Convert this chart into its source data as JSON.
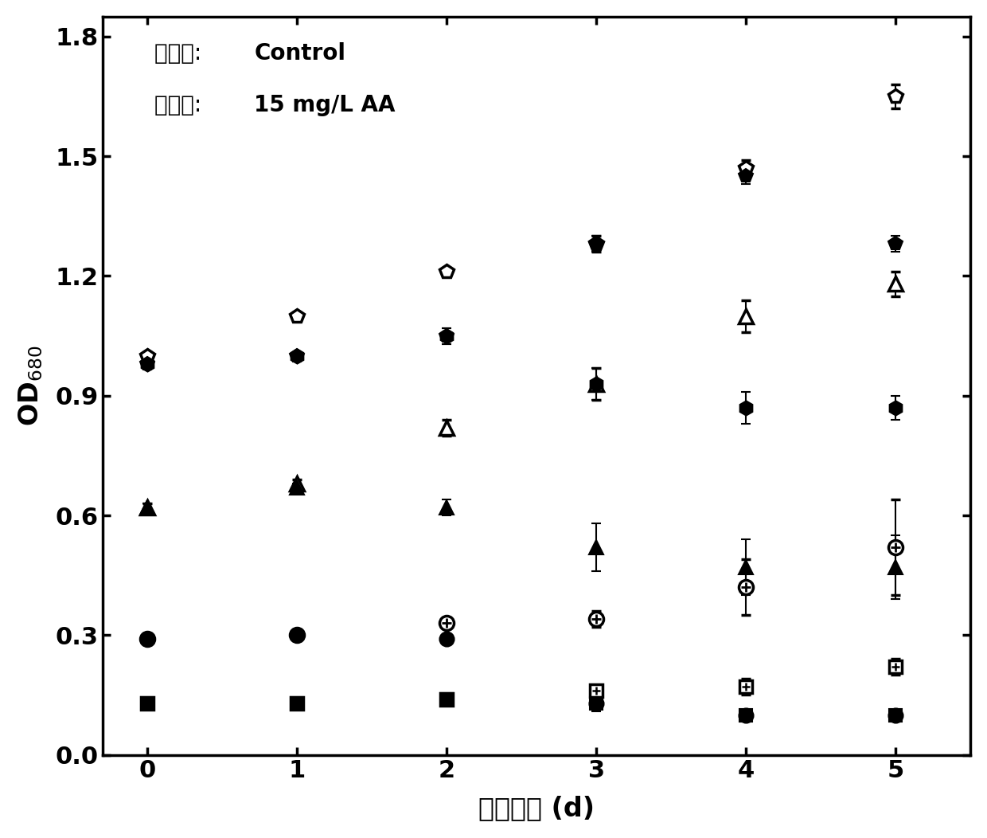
{
  "x": [
    0,
    1,
    2,
    3,
    4,
    5
  ],
  "series": [
    {
      "name": "pentagon_open",
      "y": [
        1.0,
        1.1,
        1.21,
        1.28,
        1.47,
        1.65
      ],
      "yerr": [
        0.01,
        0.01,
        0.01,
        0.02,
        0.02,
        0.03
      ],
      "marker": "p",
      "mfc": "white",
      "mec": "black",
      "mew": 2.5,
      "ms": 13
    },
    {
      "name": "pentagon_filled",
      "y": [
        0.98,
        1.0,
        1.05,
        1.28,
        1.45,
        1.28
      ],
      "yerr": [
        0.01,
        0.01,
        0.02,
        0.02,
        0.02,
        0.02
      ],
      "marker": "p",
      "mfc": "black",
      "mec": "black",
      "mew": 1.5,
      "ms": 13
    },
    {
      "name": "triangle_open",
      "y": [
        0.62,
        0.68,
        0.82,
        0.93,
        1.1,
        1.18
      ],
      "yerr": [
        0.01,
        0.01,
        0.02,
        0.04,
        0.04,
        0.03
      ],
      "marker": "^",
      "mfc": "white",
      "mec": "black",
      "mew": 2.5,
      "ms": 13
    },
    {
      "name": "hexagon_filled",
      "y": [
        0.98,
        1.0,
        1.05,
        0.93,
        0.87,
        0.87
      ],
      "yerr": [
        0.01,
        0.01,
        0.02,
        0.04,
        0.04,
        0.03
      ],
      "marker": "h",
      "mfc": "black",
      "mec": "black",
      "mew": 1.5,
      "ms": 13
    },
    {
      "name": "triangle_filled",
      "y": [
        0.62,
        0.67,
        0.62,
        0.52,
        0.47,
        0.47
      ],
      "yerr": [
        0.01,
        0.01,
        0.02,
        0.06,
        0.07,
        0.08
      ],
      "marker": "^",
      "mfc": "black",
      "mec": "black",
      "mew": 1.5,
      "ms": 13
    },
    {
      "name": "circle_cross_open",
      "y": [
        0.29,
        0.3,
        0.33,
        0.34,
        0.42,
        0.52
      ],
      "yerr": [
        0.01,
        0.01,
        0.01,
        0.02,
        0.07,
        0.12
      ],
      "marker": "o",
      "mfc": "white",
      "mec": "black",
      "mew": 2.5,
      "ms": 13,
      "cross": true
    },
    {
      "name": "circle_filled",
      "y": [
        0.29,
        0.3,
        0.29,
        0.13,
        0.1,
        0.1
      ],
      "yerr": [
        0.01,
        0.01,
        0.01,
        0.02,
        0.01,
        0.01
      ],
      "marker": "o",
      "mfc": "black",
      "mec": "black",
      "mew": 1.5,
      "ms": 13
    },
    {
      "name": "square_open",
      "y": [
        0.13,
        0.13,
        0.14,
        0.16,
        0.17,
        0.22
      ],
      "yerr": [
        0.005,
        0.005,
        0.005,
        0.01,
        0.02,
        0.02
      ],
      "marker": "s",
      "mfc": "white",
      "mec": "black",
      "mew": 2.5,
      "ms": 12,
      "grid": true
    },
    {
      "name": "square_filled",
      "y": [
        0.13,
        0.13,
        0.14,
        0.13,
        0.1,
        0.1
      ],
      "yerr": [
        0.005,
        0.005,
        0.005,
        0.01,
        0.01,
        0.01
      ],
      "marker": "s",
      "mfc": "black",
      "mec": "black",
      "mew": 1.5,
      "ms": 12
    }
  ],
  "xlabel_zh": "反应时间",
  "xlabel_en": " (d)",
  "ylabel": "OD$_{680}$",
  "xlim": [
    -0.3,
    5.5
  ],
  "ylim": [
    0.0,
    1.85
  ],
  "yticks": [
    0.0,
    0.3,
    0.6,
    0.9,
    1.2,
    1.5,
    1.8
  ],
  "xticks": [
    0,
    1,
    2,
    3,
    4,
    5
  ],
  "legend_zh1": "空心点: ",
  "legend_en1": "Control",
  "legend_zh2": "实心点: ",
  "legend_en2": "15 mg/L AA",
  "linewidth": 2.0,
  "capsize": 4,
  "elinewidth": 1.5,
  "background_color": "#ffffff"
}
